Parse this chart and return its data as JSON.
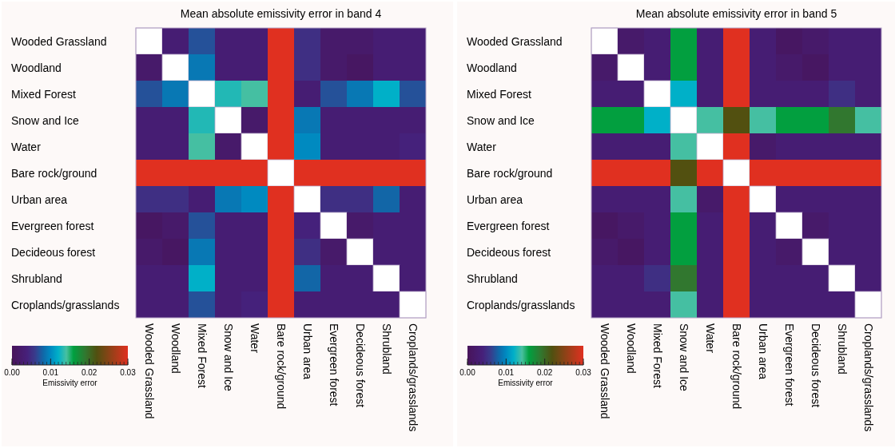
{
  "chart_data": [
    {
      "type": "heatmap",
      "title": "Mean absolute emissivity error in band 4",
      "clabel": "Emissivity error",
      "clim": [
        0,
        0.03
      ],
      "cticks": [
        {
          "value": 0,
          "label": "0.00"
        },
        {
          "value": 0.01,
          "label": "0.01"
        },
        {
          "value": 0.02,
          "label": "0.02"
        },
        {
          "value": 0.03,
          "label": "0.03"
        }
      ],
      "categories": [
        "Wooded Grassland",
        "Woodland",
        "Mixed Forest",
        "Snow and Ice",
        "Water",
        "Bare rock/ground",
        "Urban area",
        "Evergreen forest",
        "Decideous forest",
        "Shrubland",
        "Croplands/grasslands"
      ],
      "y_categories": [
        "Wooded Grassland",
        "Woodland",
        "Mixed Forest",
        "Snow and Ice",
        "Water",
        "Bare rock/ground",
        "Urban area",
        "Evergreen forest",
        "Decideous forest",
        "Shrubland",
        "Croplands/grasslands"
      ],
      "cells": [
        [
          null,
          0.003,
          0.007,
          0.003,
          0.003,
          0.03,
          0.005,
          0.002,
          0.002,
          0.003,
          0.003
        ],
        [
          0.002,
          null,
          0.009,
          0.003,
          0.003,
          0.03,
          0.005,
          0.002,
          0.001,
          0.003,
          0.003
        ],
        [
          0.007,
          0.009,
          null,
          0.013,
          0.014,
          0.03,
          0.003,
          0.007,
          0.009,
          0.012,
          0.007
        ],
        [
          0.003,
          0.003,
          0.013,
          null,
          0.002,
          0.03,
          0.009,
          0.003,
          0.003,
          0.003,
          0.003
        ],
        [
          0.003,
          0.003,
          0.014,
          0.002,
          null,
          0.03,
          0.01,
          0.003,
          0.003,
          0.003,
          0.004
        ],
        [
          0.03,
          0.03,
          0.03,
          0.03,
          0.03,
          null,
          0.03,
          0.03,
          0.03,
          0.03,
          0.03
        ],
        [
          0.005,
          0.005,
          0.003,
          0.009,
          0.01,
          0.03,
          null,
          0.005,
          0.005,
          0.008,
          0.003
        ],
        [
          0.001,
          0.002,
          0.007,
          0.003,
          0.003,
          0.03,
          0.004,
          null,
          0.002,
          0.003,
          0.003
        ],
        [
          0.002,
          0.001,
          0.009,
          0.003,
          0.003,
          0.03,
          0.005,
          0.002,
          null,
          0.003,
          0.003
        ],
        [
          0.003,
          0.003,
          0.012,
          0.003,
          0.003,
          0.03,
          0.008,
          0.003,
          0.003,
          null,
          0.003
        ],
        [
          0.003,
          0.003,
          0.007,
          0.003,
          0.004,
          0.03,
          0.003,
          0.003,
          0.003,
          0.003,
          null
        ]
      ]
    },
    {
      "type": "heatmap",
      "title": "Mean absolute emissivity error in band 5",
      "clabel": "Emissivity error",
      "clim": [
        0,
        0.03
      ],
      "cticks": [
        {
          "value": 0,
          "label": "0.00"
        },
        {
          "value": 0.01,
          "label": "0.01"
        },
        {
          "value": 0.02,
          "label": "0.02"
        },
        {
          "value": 0.03,
          "label": "0.03"
        }
      ],
      "categories": [
        "Wooded Grassland",
        "Woodland",
        "Mixed Forest",
        "Snow and Ice",
        "Water",
        "Bare rock/ground",
        "Urban area",
        "Evergreen forest",
        "Decideous forest",
        "Shrubland",
        "Croplands/grasslands"
      ],
      "y_categories": [
        "Wooded Grassland",
        "Woodland",
        "Mixed Forest",
        "Snow and Ice",
        "Water",
        "Bare rock/ground",
        "Urban area",
        "Evergreen forest",
        "Decideous forest",
        "Shrubland",
        "Croplands/grasslands"
      ],
      "cells": [
        [
          null,
          0.002,
          0.003,
          0.016,
          0.003,
          0.03,
          0.003,
          0.001,
          0.002,
          0.003,
          0.003
        ],
        [
          0.002,
          null,
          0.003,
          0.016,
          0.003,
          0.03,
          0.003,
          0.002,
          0.001,
          0.003,
          0.003
        ],
        [
          0.003,
          0.003,
          null,
          0.012,
          0.003,
          0.03,
          0.003,
          0.003,
          0.003,
          0.005,
          0.003
        ],
        [
          0.016,
          0.016,
          0.012,
          null,
          0.014,
          0.022,
          0.014,
          0.016,
          0.016,
          0.019,
          0.014
        ],
        [
          0.003,
          0.003,
          0.003,
          0.014,
          null,
          0.03,
          0.002,
          0.003,
          0.003,
          0.003,
          0.003
        ],
        [
          0.03,
          0.03,
          0.03,
          0.022,
          0.03,
          null,
          0.03,
          0.03,
          0.03,
          0.03,
          0.03
        ],
        [
          0.003,
          0.003,
          0.003,
          0.014,
          0.002,
          0.03,
          null,
          0.003,
          0.003,
          0.003,
          0.003
        ],
        [
          0.001,
          0.002,
          0.003,
          0.016,
          0.003,
          0.03,
          0.003,
          null,
          0.002,
          0.003,
          0.003
        ],
        [
          0.002,
          0.001,
          0.003,
          0.016,
          0.003,
          0.03,
          0.003,
          0.002,
          null,
          0.003,
          0.003
        ],
        [
          0.003,
          0.003,
          0.005,
          0.019,
          0.003,
          0.03,
          0.003,
          0.003,
          0.003,
          null,
          0.003
        ],
        [
          0.003,
          0.003,
          0.003,
          0.014,
          0.003,
          0.03,
          0.003,
          0.003,
          0.003,
          0.003,
          null
        ]
      ]
    }
  ]
}
